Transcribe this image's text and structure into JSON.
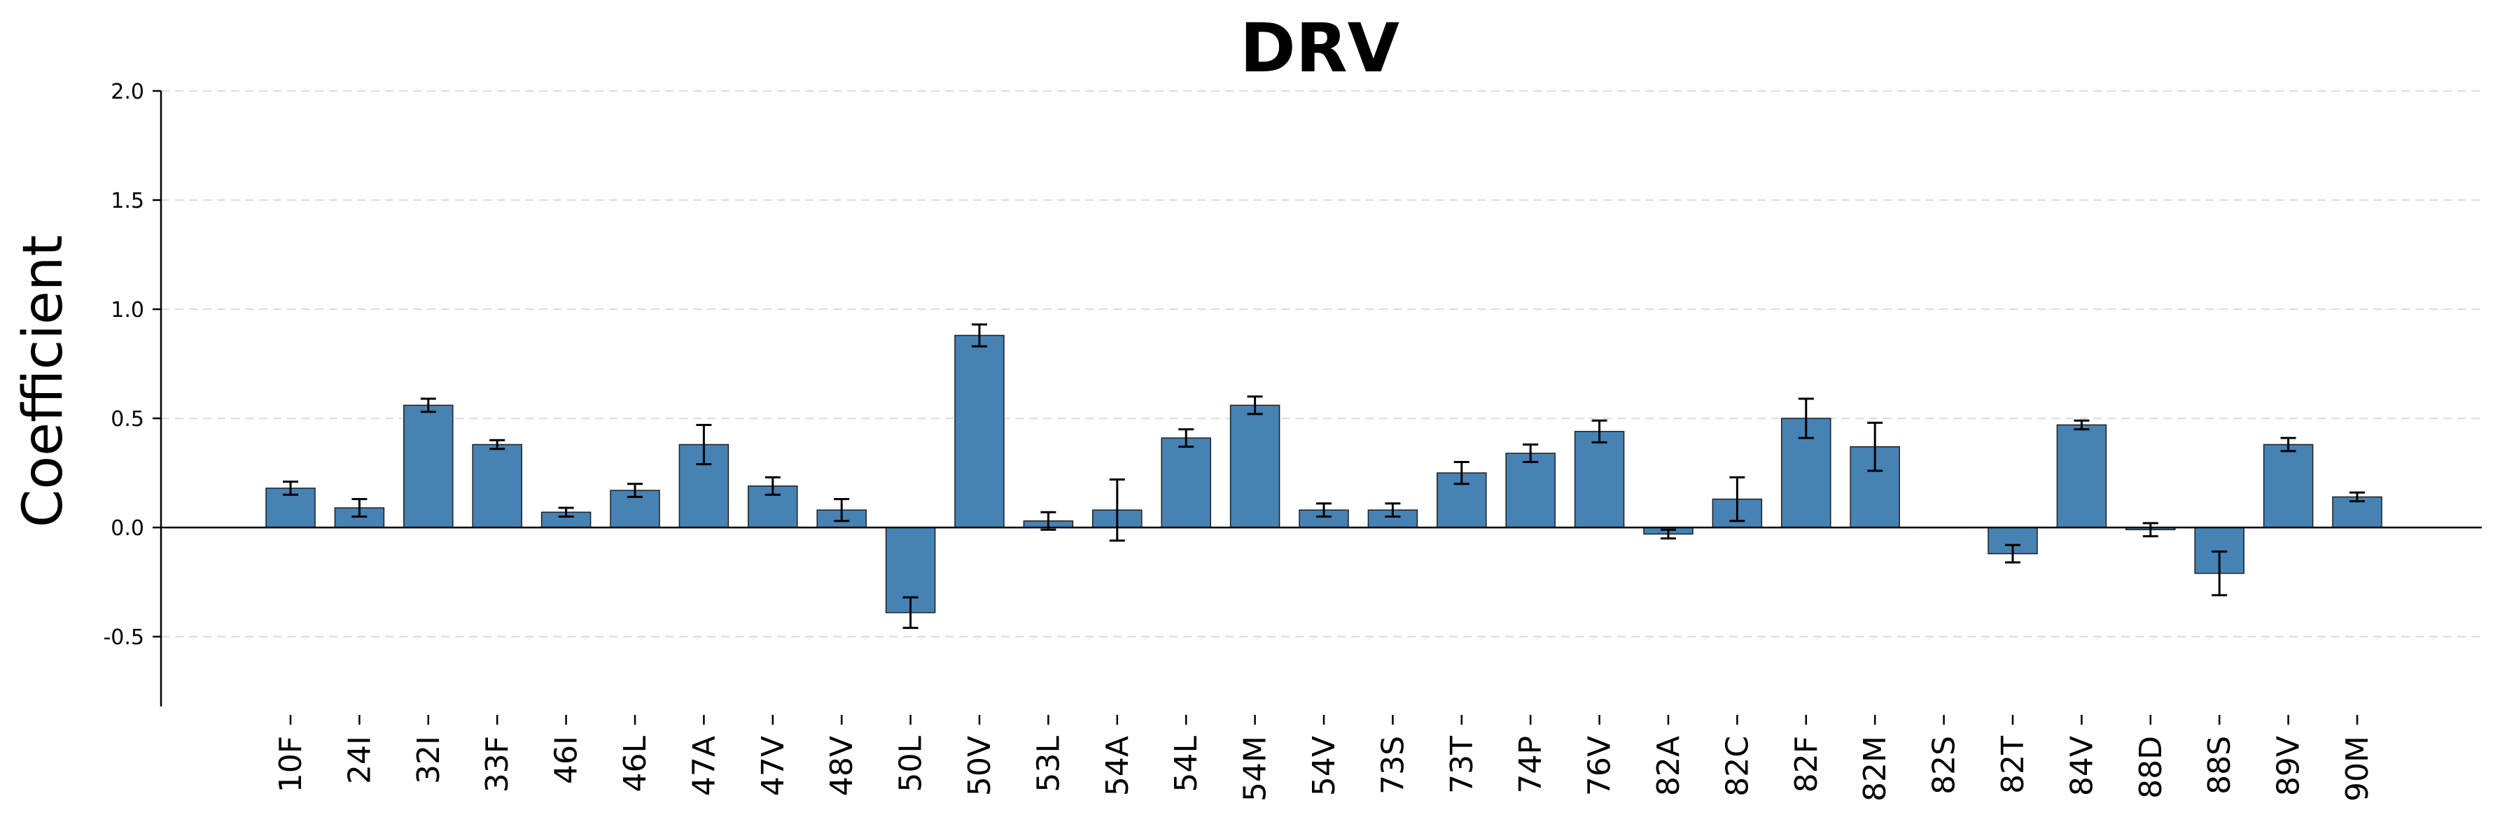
{
  "chart_data": {
    "type": "bar",
    "title": "DRV",
    "xlabel": "",
    "ylabel": "Coefficient",
    "ylim": [
      -0.82,
      2.0
    ],
    "yticks": [
      -0.5,
      0.0,
      0.5,
      1.0,
      1.5,
      2.0
    ],
    "ytick_labels": [
      "-0.5",
      "0.0",
      "0.5",
      "1.0",
      "1.5",
      "2.0"
    ],
    "grid": "y-dashed",
    "legend": "none",
    "bar_color": "#4682b4",
    "categories": [
      "10F",
      "24I",
      "32I",
      "33F",
      "46I",
      "46L",
      "47A",
      "47V",
      "48V",
      "50L",
      "50V",
      "53L",
      "54A",
      "54L",
      "54M",
      "54V",
      "73S",
      "73T",
      "74P",
      "76V",
      "82A",
      "82C",
      "82F",
      "82M",
      "82S",
      "82T",
      "84V",
      "88D",
      "88S",
      "89V",
      "90M"
    ],
    "values": [
      0.18,
      0.09,
      0.56,
      0.38,
      0.07,
      0.17,
      0.38,
      0.19,
      0.08,
      -0.39,
      0.88,
      0.03,
      0.08,
      0.41,
      0.56,
      0.08,
      0.08,
      0.25,
      0.34,
      0.44,
      -0.03,
      0.13,
      0.5,
      0.37,
      0.0,
      -0.12,
      0.47,
      -0.01,
      -0.21,
      0.38,
      0.14
    ],
    "errors": [
      0.03,
      0.04,
      0.03,
      0.02,
      0.02,
      0.03,
      0.09,
      0.04,
      0.05,
      0.07,
      0.05,
      0.04,
      0.14,
      0.04,
      0.04,
      0.03,
      0.03,
      0.05,
      0.04,
      0.05,
      0.02,
      0.1,
      0.09,
      0.11,
      0.0,
      0.04,
      0.02,
      0.03,
      0.1,
      0.03,
      0.02
    ]
  }
}
